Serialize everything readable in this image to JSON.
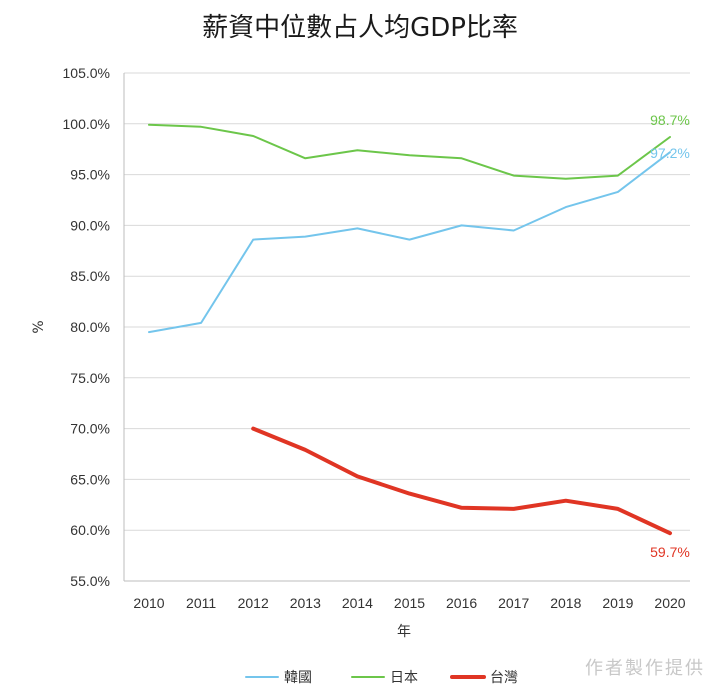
{
  "chart_data": {
    "type": "line",
    "title": "薪資中位數占人均GDP比率",
    "xlabel": "年",
    "ylabel": "%",
    "x": [
      2010,
      2011,
      2012,
      2013,
      2014,
      2015,
      2016,
      2017,
      2018,
      2019,
      2020
    ],
    "ylim": [
      55,
      105
    ],
    "y_ticks": [
      "55.0%",
      "60.0%",
      "65.0%",
      "70.0%",
      "75.0%",
      "80.0%",
      "85.0%",
      "90.0%",
      "95.0%",
      "100.0%",
      "105.0%"
    ],
    "grid": "horizontal",
    "legend_position": "bottom",
    "series": [
      {
        "name": "韓國",
        "color": "#74c5ec",
        "values": [
          79.5,
          80.4,
          88.6,
          88.9,
          89.7,
          88.6,
          90.0,
          89.5,
          91.8,
          93.3,
          97.2
        ],
        "end_label": "97.2%"
      },
      {
        "name": "日本",
        "color": "#6cc64a",
        "values": [
          99.9,
          99.7,
          98.8,
          96.6,
          97.4,
          96.9,
          96.6,
          94.9,
          94.6,
          94.9,
          98.7
        ],
        "end_label": "98.7%"
      },
      {
        "name": "台灣",
        "color": "#e03524",
        "values": [
          null,
          null,
          70.0,
          67.9,
          65.3,
          63.6,
          62.2,
          62.1,
          62.9,
          62.1,
          59.7
        ],
        "end_label": "59.7%"
      }
    ]
  },
  "credit": "作者製作提供"
}
